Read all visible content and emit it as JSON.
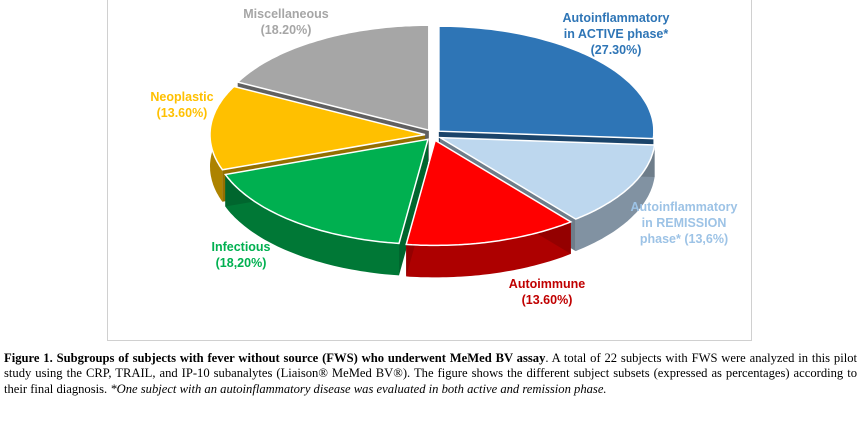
{
  "chart_data": {
    "type": "pie",
    "style": "3d-exploded",
    "slices": [
      {
        "lines": [
          "Autoinflammatory",
          "in ACTIVE phase*",
          "(27.30%)"
        ],
        "value": 27.3,
        "color": "#2e75b6",
        "label_color": "#2e75b6"
      },
      {
        "lines": [
          "Autoinflammatory",
          "in REMISSION",
          "phase* (13,6%)"
        ],
        "value": 13.6,
        "color": "#bdd7ee",
        "label_color": "#9dc3e6"
      },
      {
        "lines": [
          "Autoimmune",
          "(13.60%)"
        ],
        "value": 13.6,
        "color": "#ff0000",
        "label_color": "#c00000"
      },
      {
        "lines": [
          "Infectious",
          "(18,20%)"
        ],
        "value": 18.2,
        "color": "#00b050",
        "label_color": "#00b050"
      },
      {
        "lines": [
          "Neoplastic",
          "(13.60%)"
        ],
        "value": 13.6,
        "color": "#ffc000",
        "label_color": "#ffc000"
      },
      {
        "lines": [
          "Miscellaneous",
          "(18.20%)"
        ],
        "value": 18.2,
        "color": "#a6a6a6",
        "label_color": "#a6a6a6"
      }
    ]
  },
  "caption": {
    "figure_label": "Figure 1. Subgroups of subjects with fever without source (FWS) who underwent MeMed BV assay",
    "body": ". A total of 22 subjects with FWS were analyzed in this pilot study using the CRP, TRAIL, and IP-10 subanalytes (Liaison® MeMed BV®). The figure shows the different subject subsets (expressed as percentages) according to their final diagnosis. ",
    "footnote": "*One subject with an autoinflammatory disease was evaluated in both active and remission phase."
  }
}
